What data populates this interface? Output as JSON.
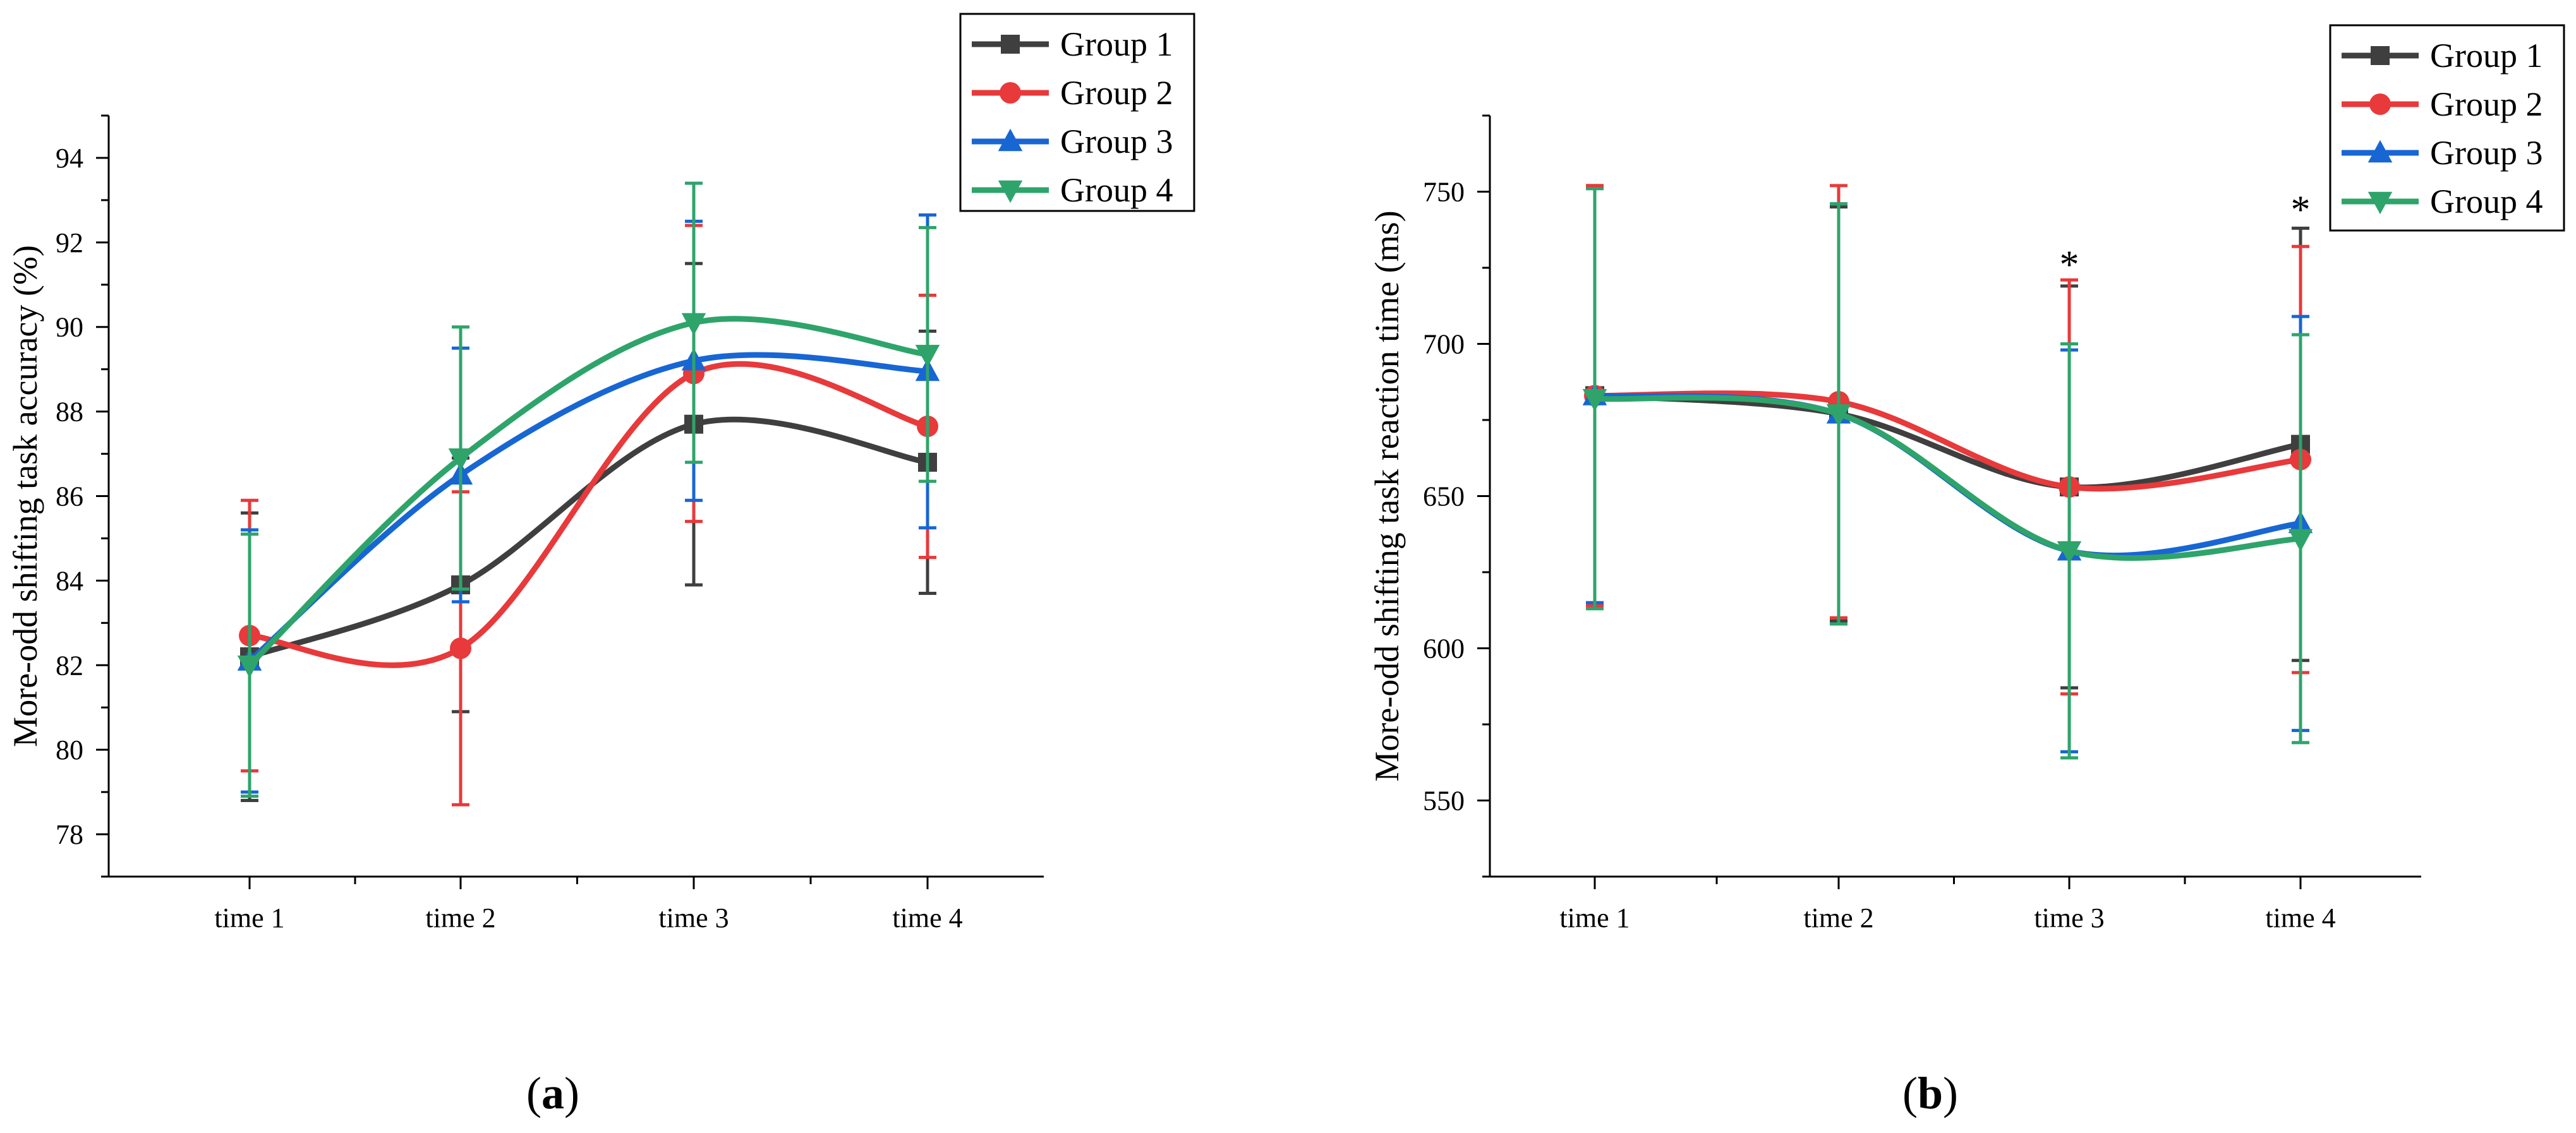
{
  "chart_data": [
    {
      "panel": "(a)",
      "panel_label": {
        "open": "(",
        "letter": "a",
        "close": ")"
      },
      "type": "line",
      "title": "",
      "xlabel": "",
      "ylabel": "More-odd shifting task accuracy (%)",
      "categories": [
        "time 1",
        "time 2",
        "time 3",
        "time 4"
      ],
      "ylim": [
        77,
        95
      ],
      "yticks": [
        78,
        80,
        82,
        84,
        86,
        88,
        90,
        92,
        94
      ],
      "grid": false,
      "legend_position": "top-right",
      "series": [
        {
          "name": "Group 1",
          "color": "#3f3f3f",
          "marker": "square",
          "values": [
            82.2,
            83.9,
            87.7,
            86.8
          ],
          "errors": [
            3.4,
            3.0,
            3.8,
            3.1
          ]
        },
        {
          "name": "Group 2",
          "color": "#e8393b",
          "marker": "circle",
          "values": [
            82.7,
            82.4,
            88.9,
            87.65
          ],
          "errors": [
            3.2,
            3.7,
            3.5,
            3.1
          ]
        },
        {
          "name": "Group 3",
          "color": "#1766d4",
          "marker": "triangle-up",
          "values": [
            82.1,
            86.5,
            89.2,
            88.95
          ],
          "errors": [
            3.1,
            3.0,
            3.3,
            3.7
          ]
        },
        {
          "name": "Group 4",
          "color": "#2ea46b",
          "marker": "triangle-down",
          "values": [
            82.0,
            86.9,
            90.1,
            89.35
          ],
          "errors": [
            3.1,
            3.1,
            3.3,
            3.0
          ]
        }
      ],
      "annotations": []
    },
    {
      "panel": "(b)",
      "panel_label": {
        "open": "(",
        "letter": "b",
        "close": ")"
      },
      "type": "line",
      "title": "",
      "xlabel": "",
      "ylabel": "More-odd shifting task reaction time (ms)",
      "categories": [
        "time 1",
        "time 2",
        "time 3",
        "time 4"
      ],
      "ylim": [
        525,
        775
      ],
      "yticks": [
        550,
        600,
        650,
        700,
        750
      ],
      "grid": false,
      "legend_position": "top-right",
      "series": [
        {
          "name": "Group 1",
          "color": "#3f3f3f",
          "marker": "square",
          "values": [
            683,
            677,
            653,
            667
          ],
          "errors": [
            69,
            68,
            66,
            71
          ]
        },
        {
          "name": "Group 2",
          "color": "#e8393b",
          "marker": "circle",
          "values": [
            683,
            681,
            653,
            662
          ],
          "errors": [
            69,
            71,
            68,
            70
          ]
        },
        {
          "name": "Group 3",
          "color": "#1766d4",
          "marker": "triangle-up",
          "values": [
            683,
            677,
            632,
            641
          ],
          "errors": [
            68,
            69,
            66,
            68
          ]
        },
        {
          "name": "Group 4",
          "color": "#2ea46b",
          "marker": "triangle-down",
          "values": [
            682,
            677,
            632,
            636
          ],
          "errors": [
            69,
            69,
            68,
            67
          ]
        }
      ],
      "annotations": [
        {
          "text": "*",
          "category": "time 3",
          "value": 727
        },
        {
          "text": "*",
          "category": "time 4",
          "value": 745
        }
      ]
    }
  ]
}
